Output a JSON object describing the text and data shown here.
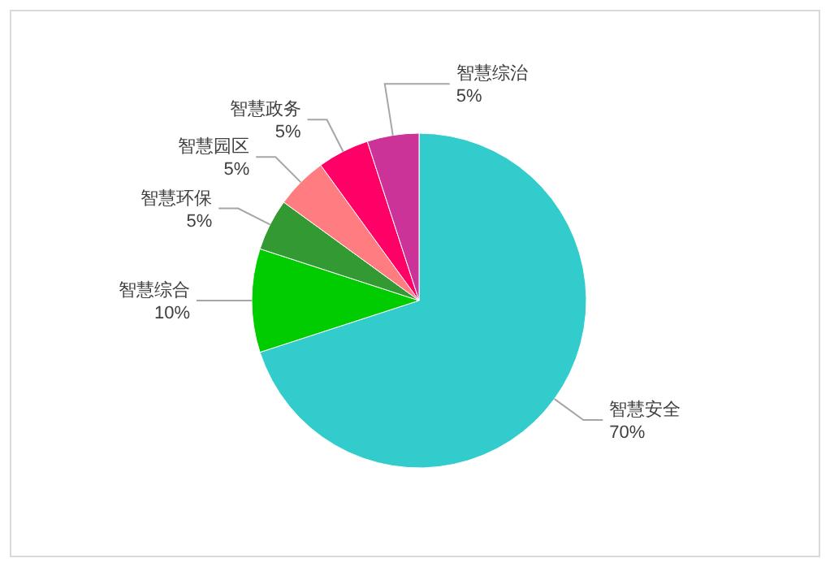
{
  "chart_data": {
    "type": "pie",
    "categories": [
      "智慧安全",
      "智慧综合",
      "智慧环保",
      "智慧园区",
      "智慧政务",
      "智慧综治"
    ],
    "values": [
      70,
      10,
      5,
      5,
      5,
      5
    ],
    "colors": [
      "#33cccc",
      "#00cc00",
      "#339933",
      "#ff7c80",
      "#ff0066",
      "#cc3399"
    ],
    "value_labels": [
      "70%",
      "10%",
      "5%",
      "5%",
      "5%",
      "5%"
    ]
  }
}
